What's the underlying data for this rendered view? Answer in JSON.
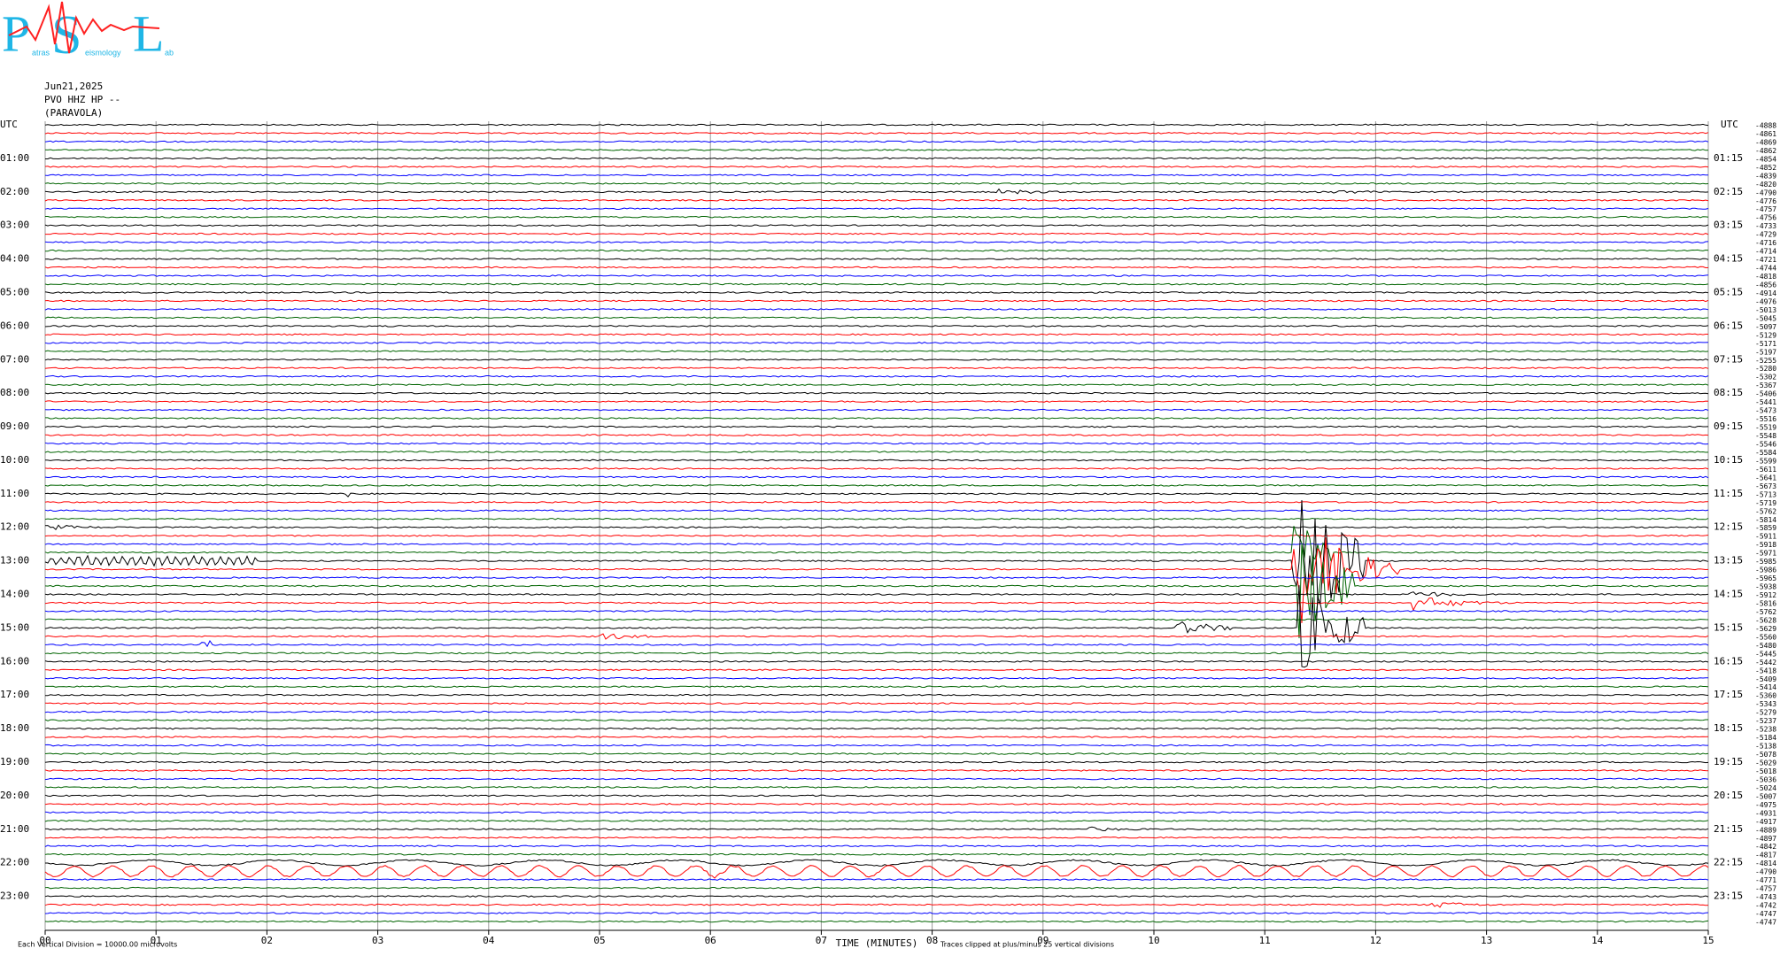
{
  "chart_data": {
    "type": "helicorder",
    "logo": {
      "letters": [
        "P",
        "S",
        "L"
      ],
      "words": [
        "atras",
        "eismology",
        "ab"
      ]
    },
    "date": "Jun21,2025",
    "station": "PVO HHZ HP --",
    "location": "(PARAVOLA)",
    "left_axis_title": "UTC",
    "right_axis_title": "UTC",
    "left_labels": [
      "01:00",
      "02:00",
      "03:00",
      "04:00",
      "05:00",
      "06:00",
      "07:00",
      "08:00",
      "09:00",
      "10:00",
      "11:00",
      "12:00",
      "13:00",
      "14:00",
      "15:00",
      "16:00",
      "17:00",
      "18:00",
      "19:00",
      "20:00",
      "21:00",
      "22:00",
      "23:00"
    ],
    "right_labels": [
      "01:15",
      "02:15",
      "03:15",
      "04:15",
      "05:15",
      "06:15",
      "07:15",
      "08:15",
      "09:15",
      "10:15",
      "11:15",
      "12:15",
      "13:15",
      "14:15",
      "15:15",
      "16:15",
      "17:15",
      "18:15",
      "19:15",
      "20:15",
      "21:15",
      "22:15",
      "23:15"
    ],
    "xlim": [
      0,
      15
    ],
    "xticks": [
      {
        "value": 0,
        "label": "00"
      },
      {
        "value": 1,
        "label": "01"
      },
      {
        "value": 2,
        "label": "02"
      },
      {
        "value": 3,
        "label": "03"
      },
      {
        "value": 4,
        "label": "04"
      },
      {
        "value": 5,
        "label": "05"
      },
      {
        "value": 6,
        "label": "06"
      },
      {
        "value": 7,
        "label": "07"
      },
      {
        "value": 8,
        "label": "08"
      },
      {
        "value": 9,
        "label": "09"
      },
      10,
      11,
      12,
      13,
      14,
      15
    ],
    "xlabel": "TIME (MINUTES)",
    "scale_note": "Each Vertical Division = 10000.00 microvolts",
    "clip_note": "Traces clipped at plus/minus 25 vertical divisions",
    "trace_colors": [
      "#000000",
      "#ff0000",
      "#0000ff",
      "#006400"
    ],
    "grid": true,
    "trace_offsets": [
      -4888,
      -4861,
      -4869,
      -4862,
      -4854,
      -4852,
      -4839,
      -4820,
      -4790,
      -4776,
      -4757,
      -4756,
      -4733,
      -4729,
      -4716,
      -4714,
      -4721,
      -4744,
      -4818,
      -4856,
      -4914,
      -4976,
      -5013,
      -5045,
      -5097,
      -5129,
      -5171,
      -5197,
      -5255,
      -5280,
      -5302,
      -5367,
      -5406,
      -5441,
      -5473,
      -5516,
      -5519,
      -5548,
      -5546,
      -5584,
      -5599,
      -5611,
      -5641,
      -5673,
      -5713,
      -5719,
      -5762,
      -5814,
      -5859,
      -5911,
      -5918,
      -5971,
      -5985,
      -5986,
      -5965,
      -5938,
      -5912,
      -5816,
      -5762,
      -5628,
      -5629,
      -5560,
      -5480,
      -5445,
      -5442,
      -5418,
      -5409,
      -5414,
      -5360,
      -5343,
      -5279,
      -5237,
      -5238,
      -5184,
      -5138,
      -5078,
      -5029,
      -5018,
      -5036,
      -5024,
      -5007,
      -4975,
      -4931,
      -4917,
      -4889,
      -4897,
      -4842,
      -4817,
      -4814,
      -4790,
      -4771,
      -4757,
      -4743,
      -4742,
      -4747,
      -4747
    ]
  }
}
